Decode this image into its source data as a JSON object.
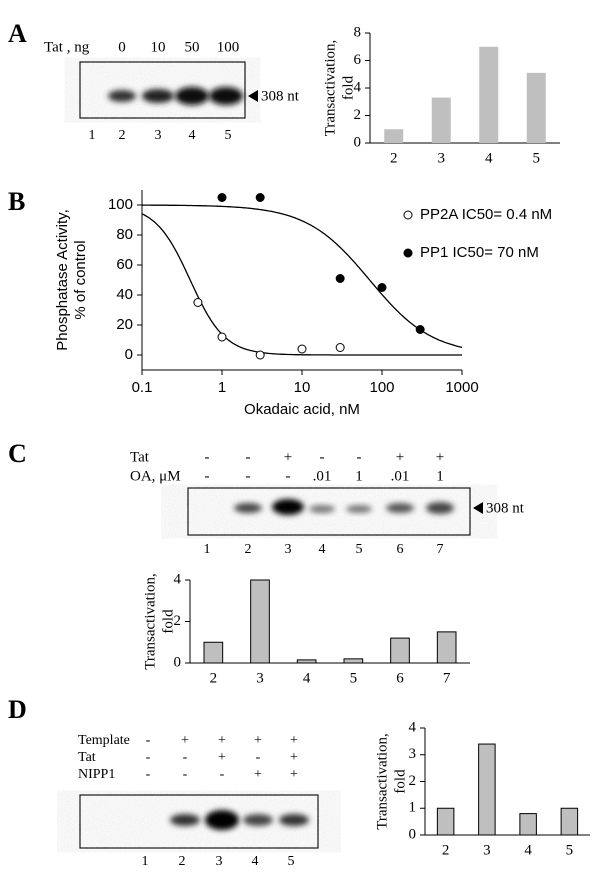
{
  "panel_labels": [
    "A",
    "B",
    "C",
    "D"
  ],
  "gel_a": {
    "row_label": "Tat , ng",
    "doses": [
      "0",
      "10",
      "50",
      "100"
    ],
    "lanes": [
      "1",
      "2",
      "3",
      "4",
      "5"
    ],
    "marker": "308 nt"
  },
  "gel_c": {
    "rows": [
      {
        "label": "Tat",
        "signs": [
          "-",
          "-",
          "+",
          "-",
          "-",
          "+",
          "+"
        ]
      },
      {
        "label": "OA, μM",
        "signs": [
          "-",
          "-",
          "-",
          ".01",
          "1",
          ".01",
          "1"
        ]
      }
    ],
    "lanes": [
      "1",
      "2",
      "3",
      "4",
      "5",
      "6",
      "7"
    ],
    "marker": "308 nt"
  },
  "gel_d": {
    "rows": [
      {
        "label": "Template",
        "signs": [
          "-",
          "+",
          "+",
          "+",
          "+"
        ]
      },
      {
        "label": "Tat",
        "signs": [
          "-",
          "-",
          "+",
          "-",
          "+"
        ]
      },
      {
        "label": "NIPP1",
        "signs": [
          "-",
          "-",
          "-",
          "+",
          "+"
        ]
      }
    ],
    "lanes": [
      "1",
      "2",
      "3",
      "4",
      "5"
    ]
  },
  "chart_data": [
    {
      "type": "bar",
      "y_label": [
        "Transactivation,",
        "fold"
      ],
      "categories": [
        "2",
        "3",
        "4",
        "5"
      ],
      "values": [
        1,
        3.3,
        7,
        5.1
      ],
      "color": "#bfbfbf",
      "outline": false,
      "ylim": [
        0,
        8
      ],
      "yticks": [
        0,
        2,
        4,
        6,
        8
      ]
    },
    {
      "type": "scatter",
      "y_label": [
        "Phosphatase Activity,",
        "% of control"
      ],
      "x_label": "Okadaic acid, nM",
      "xlim": [
        0.1,
        1000
      ],
      "xticks": [
        0.1,
        1,
        10,
        100,
        1000
      ],
      "log_x": true,
      "ylim": [
        -10,
        110
      ],
      "yticks": [
        0,
        20,
        40,
        60,
        80,
        100
      ],
      "series": [
        {
          "name": "PP2A IC50= 0.4 nM",
          "ic50": 0.4,
          "color": "#000",
          "marker": "open",
          "x": [
            0.5,
            1,
            3,
            10,
            30
          ],
          "values": [
            35,
            12,
            0,
            4,
            5
          ]
        },
        {
          "name": "PP1 IC50= 70 nM",
          "ic50": 70,
          "color": "#000",
          "marker": "filled",
          "x": [
            1,
            3,
            30,
            100,
            300
          ],
          "values": [
            105,
            105,
            51,
            45,
            17
          ]
        }
      ]
    },
    {
      "type": "bar",
      "y_label": [
        "Transactivation,",
        "fold"
      ],
      "categories": [
        "2",
        "3",
        "4",
        "5",
        "6",
        "7"
      ],
      "values": [
        1,
        4,
        0.15,
        0.2,
        1.2,
        1.5
      ],
      "color": "#bfbfbf",
      "outline": true,
      "ylim": [
        0,
        4
      ],
      "yticks": [
        0,
        2,
        4
      ]
    },
    {
      "type": "bar",
      "y_label": [
        "Transactivation,",
        "fold"
      ],
      "categories": [
        "2",
        "3",
        "4",
        "5"
      ],
      "values": [
        1,
        3.4,
        0.8,
        1
      ],
      "color": "#bfbfbf",
      "outline": true,
      "ylim": [
        0,
        4
      ],
      "yticks": [
        0,
        1,
        2,
        3,
        4
      ]
    }
  ]
}
